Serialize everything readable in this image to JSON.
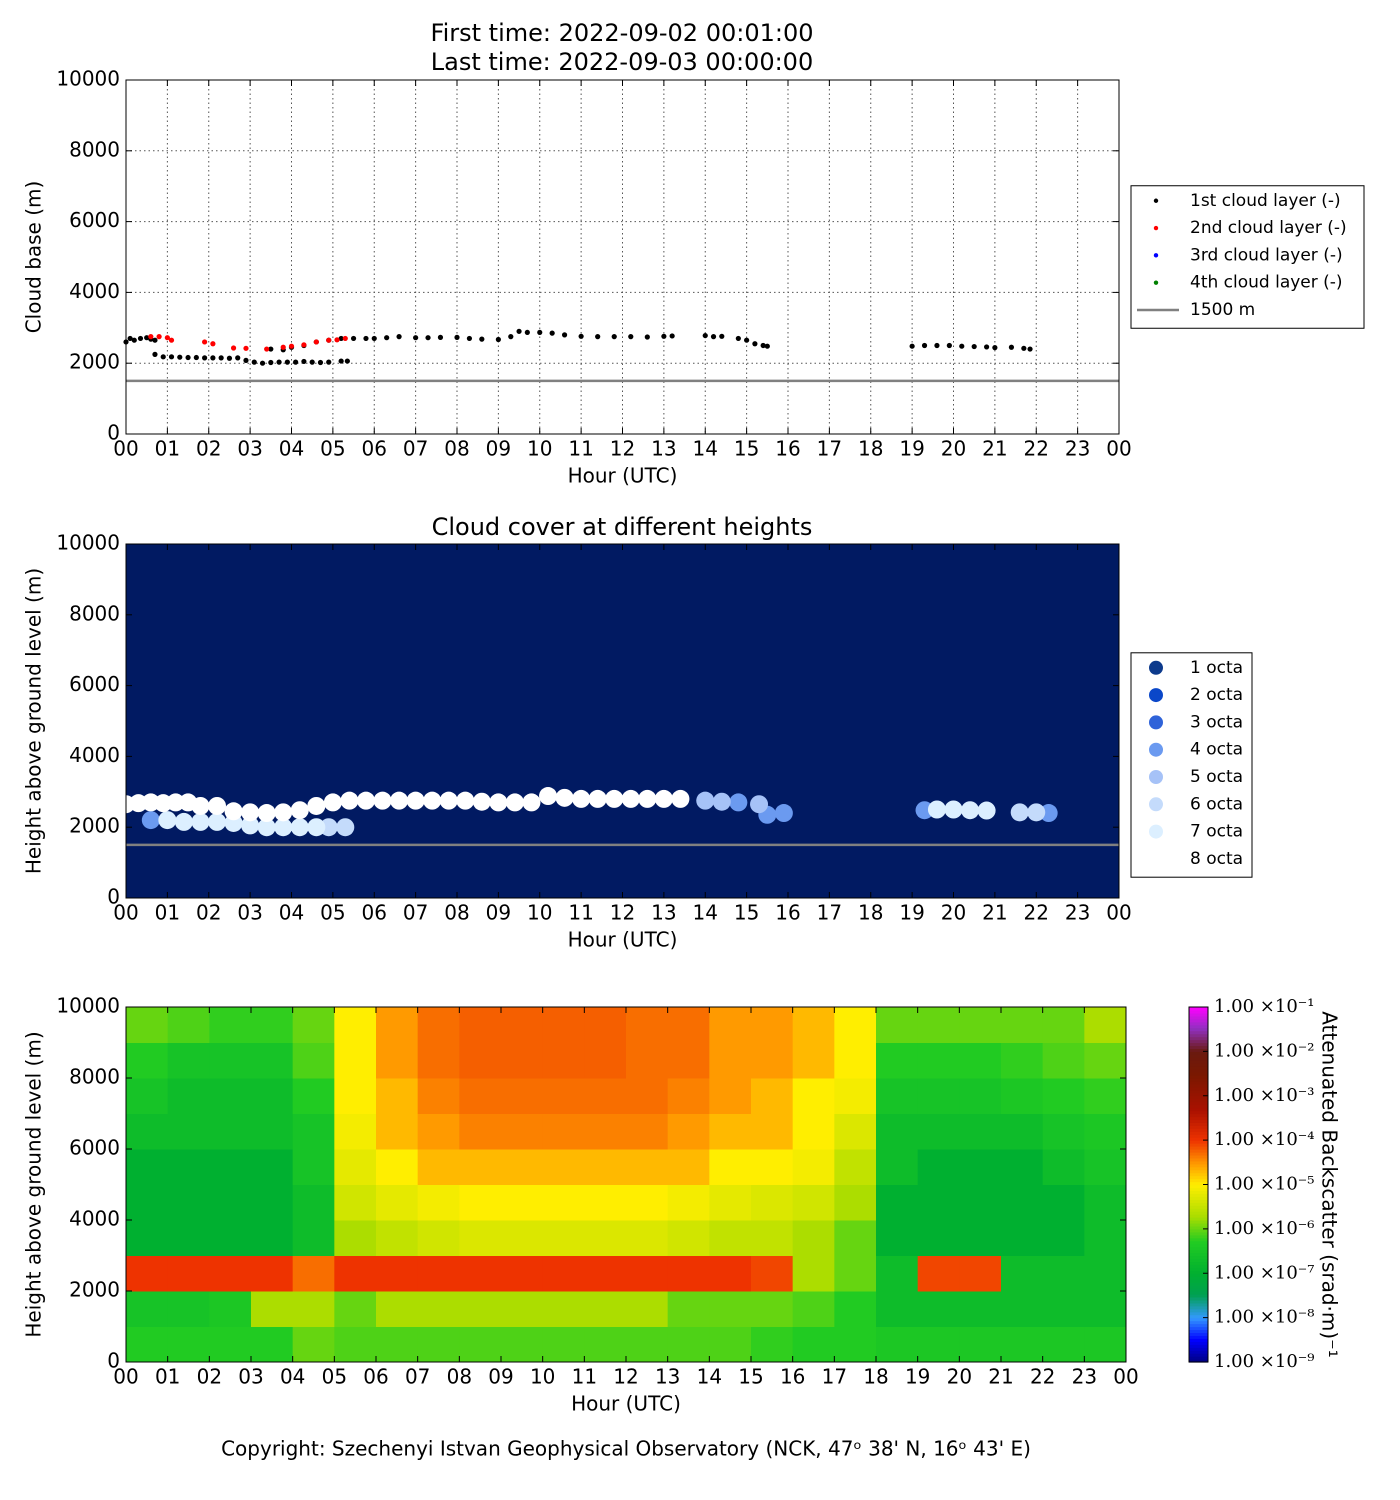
{
  "chart_data": [
    {
      "type": "scatter",
      "title": "First time: 2022-09-02 00:01:00",
      "subtitle": "Last time: 2022-09-03 00:00:00",
      "xlabel": "Hour (UTC)",
      "ylabel": "Cloud base (m)",
      "xlim": [
        0,
        24
      ],
      "ylim": [
        0,
        10000
      ],
      "xticks": [
        {
          "value": 0,
          "label": "00"
        },
        {
          "value": 1,
          "label": "01"
        },
        {
          "value": 2,
          "label": "02"
        },
        {
          "value": 3,
          "label": "03"
        },
        {
          "value": 4,
          "label": "04"
        },
        {
          "value": 5,
          "label": "05"
        },
        {
          "value": 6,
          "label": "06"
        },
        {
          "value": 7,
          "label": "07"
        },
        {
          "value": 8,
          "label": "08"
        },
        {
          "value": 9,
          "label": "09"
        },
        {
          "value": 10,
          "label": "10"
        },
        {
          "value": 11,
          "label": "11"
        },
        {
          "value": 12,
          "label": "12"
        },
        {
          "value": 13,
          "label": "13"
        },
        {
          "value": 14,
          "label": "14"
        },
        {
          "value": 15,
          "label": "15"
        },
        {
          "value": 16,
          "label": "16"
        },
        {
          "value": 17,
          "label": "17"
        },
        {
          "value": 18,
          "label": "18"
        },
        {
          "value": 19,
          "label": "19"
        },
        {
          "value": 20,
          "label": "20"
        },
        {
          "value": 21,
          "label": "21"
        },
        {
          "value": 22,
          "label": "22"
        },
        {
          "value": 23,
          "label": "23"
        },
        {
          "value": 24,
          "label": "00"
        }
      ],
      "yticks": [
        0,
        2000,
        4000,
        6000,
        8000,
        10000
      ],
      "grid": true,
      "legend": "outside-right",
      "series": [
        {
          "name": "1st cloud layer (-)",
          "color": "#000000",
          "x": [
            0,
            0.1,
            0.2,
            0.35,
            0.5,
            0.6,
            0.7,
            0.7,
            0.9,
            1.1,
            1.3,
            1.5,
            1.7,
            1.9,
            2.1,
            2.3,
            2.5,
            2.7,
            2.9,
            3.1,
            3.3,
            3.5,
            3.7,
            3.9,
            4.1,
            4.3,
            4.5,
            4.7,
            4.9,
            5.2,
            5.35,
            3.5,
            3.8,
            4.0,
            4.3,
            4.6,
            4.9,
            5.2,
            5.5,
            5.8,
            6.0,
            6.3,
            6.6,
            7.0,
            7.3,
            7.6,
            8.0,
            8.3,
            8.6,
            9.0,
            9.3,
            9.5,
            9.7,
            10.0,
            10.3,
            10.6,
            11.0,
            11.4,
            11.8,
            12.2,
            12.6,
            13.0,
            13.2,
            14.0,
            14.2,
            14.4,
            14.8,
            15.0,
            15.2,
            15.4,
            15.5,
            19.0,
            19.3,
            19.6,
            19.9,
            20.2,
            20.5,
            20.8,
            21.0,
            21.4,
            21.7,
            21.85
          ],
          "values": [
            2600,
            2700,
            2650,
            2700,
            2720,
            2680,
            2650,
            2250,
            2180,
            2180,
            2170,
            2160,
            2160,
            2150,
            2150,
            2150,
            2140,
            2150,
            2080,
            2030,
            2000,
            2020,
            2030,
            2030,
            2030,
            2050,
            2030,
            2020,
            2030,
            2060,
            2060,
            2400,
            2380,
            2450,
            2500,
            2600,
            2650,
            2700,
            2700,
            2700,
            2700,
            2720,
            2750,
            2720,
            2720,
            2730,
            2730,
            2700,
            2680,
            2670,
            2750,
            2900,
            2870,
            2870,
            2850,
            2800,
            2760,
            2750,
            2750,
            2750,
            2740,
            2760,
            2770,
            2780,
            2750,
            2760,
            2700,
            2650,
            2550,
            2500,
            2480,
            2480,
            2500,
            2500,
            2500,
            2480,
            2470,
            2460,
            2440,
            2450,
            2420,
            2400
          ]
        },
        {
          "name": "2nd cloud layer (-)",
          "color": "#ff0000",
          "x": [
            0.6,
            0.8,
            1.0,
            1.1,
            1.9,
            2.1,
            2.6,
            2.9,
            3.4,
            3.8,
            4.0,
            4.3,
            4.6,
            4.9,
            5.1,
            5.3
          ],
          "values": [
            2750,
            2750,
            2720,
            2650,
            2600,
            2550,
            2430,
            2420,
            2400,
            2450,
            2480,
            2520,
            2600,
            2650,
            2660,
            2700
          ]
        },
        {
          "name": "3rd cloud layer (-)",
          "color": "#0000ff",
          "x": [],
          "values": []
        },
        {
          "name": "4th cloud layer (-)",
          "color": "#008000",
          "x": [],
          "values": []
        }
      ],
      "reference_lines": [
        {
          "name": "1500 m",
          "value": 1500,
          "color": "#808080"
        }
      ]
    },
    {
      "type": "scatter",
      "title": "Cloud cover at different heights",
      "xlabel": "Hour (UTC)",
      "ylabel": "Height above ground level (m)",
      "xlim": [
        0,
        24
      ],
      "ylim": [
        0,
        10000
      ],
      "xticks": [
        {
          "value": 0,
          "label": "00"
        },
        {
          "value": 1,
          "label": "01"
        },
        {
          "value": 2,
          "label": "02"
        },
        {
          "value": 3,
          "label": "03"
        },
        {
          "value": 4,
          "label": "04"
        },
        {
          "value": 5,
          "label": "05"
        },
        {
          "value": 6,
          "label": "06"
        },
        {
          "value": 7,
          "label": "07"
        },
        {
          "value": 8,
          "label": "08"
        },
        {
          "value": 9,
          "label": "09"
        },
        {
          "value": 10,
          "label": "10"
        },
        {
          "value": 11,
          "label": "11"
        },
        {
          "value": 12,
          "label": "12"
        },
        {
          "value": 13,
          "label": "13"
        },
        {
          "value": 14,
          "label": "14"
        },
        {
          "value": 15,
          "label": "15"
        },
        {
          "value": 16,
          "label": "16"
        },
        {
          "value": 17,
          "label": "17"
        },
        {
          "value": 18,
          "label": "18"
        },
        {
          "value": 19,
          "label": "19"
        },
        {
          "value": 20,
          "label": "20"
        },
        {
          "value": 21,
          "label": "21"
        },
        {
          "value": 22,
          "label": "22"
        },
        {
          "value": 23,
          "label": "23"
        },
        {
          "value": 24,
          "label": "00"
        }
      ],
      "yticks": [
        0,
        2000,
        4000,
        6000,
        8000,
        10000
      ],
      "grid": false,
      "legend": "outside-right",
      "background": "#011a62",
      "series": [
        {
          "name": "1 octa",
          "color": "#0d3a8c",
          "x": [],
          "values": []
        },
        {
          "name": "2 octa",
          "color": "#0a47c9",
          "x": [],
          "values": []
        },
        {
          "name": "3 octa",
          "color": "#2f63d9",
          "x": [],
          "values": []
        },
        {
          "name": "4 octa",
          "color": "#6b9af0",
          "x": [
            0.6,
            14.8,
            15.5,
            15.9,
            19.3,
            22.3
          ],
          "values": [
            2200,
            2700,
            2350,
            2400,
            2480,
            2400
          ]
        },
        {
          "name": "5 octa",
          "color": "#a6c2f7",
          "x": [
            14.0,
            14.4,
            15.3
          ],
          "values": [
            2750,
            2720,
            2650
          ]
        },
        {
          "name": "6 octa",
          "color": "#c4dbfb",
          "x": [
            4.9,
            5.3,
            21.6,
            22.0
          ],
          "values": [
            2000,
            2000,
            2420,
            2420
          ]
        },
        {
          "name": "7 octa",
          "color": "#dcefff",
          "x": [
            1.0,
            1.4,
            1.8,
            2.2,
            2.6,
            3.0,
            3.4,
            3.8,
            4.2,
            4.6,
            19.6,
            20.0,
            20.4,
            20.8
          ],
          "values": [
            2200,
            2150,
            2150,
            2150,
            2120,
            2050,
            2000,
            2000,
            2000,
            2000,
            2500,
            2500,
            2480,
            2470
          ]
        },
        {
          "name": "8 octa",
          "color": "#ffffff",
          "x": [
            0,
            0.3,
            0.6,
            0.9,
            1.2,
            1.5,
            1.8,
            2.2,
            2.6,
            3.0,
            3.4,
            3.8,
            4.2,
            4.6,
            5.0,
            5.4,
            5.8,
            6.2,
            6.6,
            7.0,
            7.4,
            7.8,
            8.2,
            8.6,
            9.0,
            9.4,
            9.8,
            10.2,
            10.6,
            11.0,
            11.4,
            11.8,
            12.2,
            12.6,
            13.0,
            13.4
          ],
          "values": [
            2650,
            2680,
            2700,
            2680,
            2700,
            2700,
            2600,
            2600,
            2450,
            2420,
            2400,
            2420,
            2480,
            2600,
            2700,
            2750,
            2750,
            2750,
            2750,
            2750,
            2750,
            2750,
            2750,
            2720,
            2700,
            2700,
            2700,
            2880,
            2830,
            2800,
            2800,
            2800,
            2800,
            2800,
            2800,
            2800
          ]
        }
      ],
      "reference_lines": [
        {
          "value": 1500,
          "color": "#808080"
        }
      ]
    },
    {
      "type": "heatmap",
      "xlabel": "Hour (UTC)",
      "ylabel": "Height above ground level (m)",
      "xlim": [
        0,
        24
      ],
      "ylim": [
        0,
        10000
      ],
      "xticks": [
        {
          "value": 0,
          "label": "00"
        },
        {
          "value": 1,
          "label": "01"
        },
        {
          "value": 2,
          "label": "02"
        },
        {
          "value": 3,
          "label": "03"
        },
        {
          "value": 4,
          "label": "04"
        },
        {
          "value": 5,
          "label": "05"
        },
        {
          "value": 6,
          "label": "06"
        },
        {
          "value": 7,
          "label": "07"
        },
        {
          "value": 8,
          "label": "08"
        },
        {
          "value": 9,
          "label": "09"
        },
        {
          "value": 10,
          "label": "10"
        },
        {
          "value": 11,
          "label": "11"
        },
        {
          "value": 12,
          "label": "12"
        },
        {
          "value": 13,
          "label": "13"
        },
        {
          "value": 14,
          "label": "14"
        },
        {
          "value": 15,
          "label": "15"
        },
        {
          "value": 16,
          "label": "16"
        },
        {
          "value": 17,
          "label": "17"
        },
        {
          "value": 18,
          "label": "18"
        },
        {
          "value": 19,
          "label": "19"
        },
        {
          "value": 20,
          "label": "20"
        },
        {
          "value": 21,
          "label": "21"
        },
        {
          "value": 22,
          "label": "22"
        },
        {
          "value": 23,
          "label": "23"
        },
        {
          "value": 24,
          "label": "00"
        }
      ],
      "yticks": [
        0,
        2000,
        4000,
        6000,
        8000,
        10000
      ],
      "grid": false,
      "xbins": [
        0,
        1,
        2,
        3,
        4,
        5,
        6,
        7,
        8,
        9,
        10,
        11,
        12,
        13,
        14,
        15,
        16,
        17,
        18,
        19,
        20,
        21,
        22,
        23,
        24
      ],
      "ybins": [
        0,
        1000,
        2000,
        3000,
        4000,
        5000,
        6000,
        7000,
        8000,
        9000,
        10000
      ],
      "z": [
        [
          5e-07,
          5e-07,
          5e-07,
          5e-07,
          1e-06,
          8e-07,
          8e-07,
          8e-07,
          8e-07,
          8e-07,
          8e-07,
          8e-07,
          8e-07,
          8e-07,
          8e-07,
          6e-07,
          5e-07,
          5e-07,
          4e-07,
          4e-07,
          4e-07,
          4e-07,
          4e-07,
          4e-07
        ],
        [
          3e-07,
          3e-07,
          4e-07,
          2e-06,
          2e-06,
          1e-06,
          2e-06,
          2e-06,
          2e-06,
          2e-06,
          2e-06,
          2e-06,
          2e-06,
          1e-06,
          1e-06,
          1e-06,
          8e-07,
          5e-07,
          2e-07,
          2e-07,
          2e-07,
          2e-07,
          2e-07,
          2e-07
        ],
        [
          0.0001,
          0.0001,
          0.0001,
          0.0001,
          5e-05,
          0.0001,
          0.0001,
          0.0001,
          0.0001,
          0.0001,
          0.0001,
          0.0001,
          0.0001,
          0.0001,
          0.0001,
          8e-05,
          2e-06,
          1e-06,
          2e-07,
          8e-05,
          8e-05,
          2e-07,
          2e-07,
          2e-07
        ],
        [
          1e-07,
          1e-07,
          1e-07,
          1e-07,
          2e-07,
          2e-06,
          3e-06,
          4e-06,
          5e-06,
          5e-06,
          5e-06,
          5e-06,
          5e-06,
          4e-06,
          3e-06,
          3e-06,
          2e-06,
          1e-06,
          1e-07,
          1e-07,
          1e-07,
          1e-07,
          1e-07,
          2e-07
        ],
        [
          1e-07,
          1e-07,
          1e-07,
          1e-07,
          2e-07,
          4e-06,
          6e-06,
          8e-06,
          1e-05,
          1e-05,
          1e-05,
          1e-05,
          1e-05,
          8e-06,
          6e-06,
          5e-06,
          4e-06,
          2e-06,
          1e-07,
          1e-07,
          1e-07,
          1e-07,
          1e-07,
          2e-07
        ],
        [
          1e-07,
          1e-07,
          1e-07,
          1e-07,
          3e-07,
          6e-06,
          1e-05,
          2e-05,
          2e-05,
          2e-05,
          2e-05,
          2e-05,
          2e-05,
          2e-05,
          1e-05,
          1e-05,
          8e-06,
          3e-06,
          2e-07,
          1e-07,
          1e-07,
          1e-07,
          2e-07,
          3e-07
        ],
        [
          2e-07,
          2e-07,
          2e-07,
          2e-07,
          3e-07,
          8e-06,
          2e-05,
          3e-05,
          4e-05,
          4e-05,
          4e-05,
          4e-05,
          4e-05,
          3e-05,
          2e-05,
          2e-05,
          1e-05,
          5e-06,
          2e-07,
          2e-07,
          2e-07,
          2e-07,
          3e-07,
          4e-07
        ],
        [
          3e-07,
          2e-07,
          2e-07,
          2e-07,
          5e-07,
          1e-05,
          2e-05,
          4e-05,
          5e-05,
          5e-05,
          5e-05,
          5e-05,
          5e-05,
          4e-05,
          3e-05,
          2e-05,
          1e-05,
          8e-06,
          3e-07,
          3e-07,
          3e-07,
          4e-07,
          5e-07,
          6e-07
        ],
        [
          5e-07,
          3e-07,
          3e-07,
          3e-07,
          8e-07,
          1e-05,
          3e-05,
          5e-05,
          6e-05,
          6e-05,
          6e-05,
          6e-05,
          5e-05,
          5e-05,
          3e-05,
          3e-05,
          2e-05,
          1e-05,
          5e-07,
          5e-07,
          5e-07,
          6e-07,
          8e-07,
          1e-06
        ],
        [
          1e-06,
          8e-07,
          6e-07,
          6e-07,
          1e-06,
          1e-05,
          3e-05,
          5e-05,
          6e-05,
          6e-05,
          6e-05,
          6e-05,
          5e-05,
          5e-05,
          3e-05,
          3e-05,
          2e-05,
          1e-05,
          1e-06,
          1e-06,
          1e-06,
          1e-06,
          1e-06,
          2e-06
        ]
      ],
      "colorbar": {
        "label": "Attenuated Backscatter (srad·m)⁻¹",
        "log": true,
        "lim": [
          1e-09,
          0.1
        ],
        "ticks": [
          {
            "value": 1e-09,
            "label": "1.00 ×10⁻⁹"
          },
          {
            "value": 1e-08,
            "label": "1.00 ×10⁻⁸"
          },
          {
            "value": 1e-07,
            "label": "1.00 ×10⁻⁷"
          },
          {
            "value": 1e-06,
            "label": "1.00 ×10⁻⁶"
          },
          {
            "value": 1e-05,
            "label": "1.00 ×10⁻⁵"
          },
          {
            "value": 0.0001,
            "label": "1.00 ×10⁻⁴"
          },
          {
            "value": 0.001,
            "label": "1.00 ×10⁻³"
          },
          {
            "value": 0.01,
            "label": "1.00 ×10⁻²"
          },
          {
            "value": 0.1,
            "label": "1.00 ×10⁻¹"
          }
        ]
      }
    }
  ],
  "footer": "Copyright: Szechenyi Istvan Geophysical Observatory (NCK, 47ᵒ 38' N, 16ᵒ 43' E)"
}
